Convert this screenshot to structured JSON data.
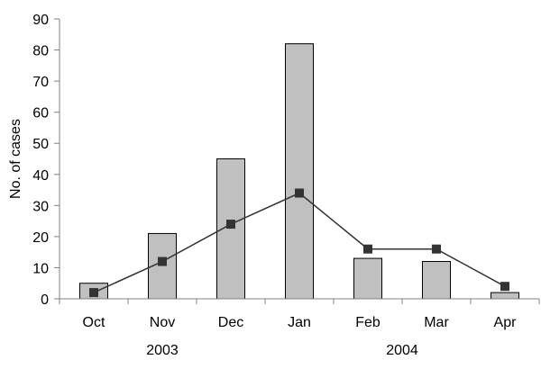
{
  "chart_data": {
    "type": "bar",
    "categories": [
      "Oct",
      "Nov",
      "Dec",
      "Jan",
      "Feb",
      "Mar",
      "Apr"
    ],
    "year_labels": [
      "2003",
      "2004"
    ],
    "ylabel": "No. of cases",
    "ylim": [
      0,
      90
    ],
    "yticks": [
      "0",
      "10",
      "20",
      "30",
      "40",
      "50",
      "60",
      "70",
      "80",
      "90"
    ],
    "grid": false,
    "legend": "none",
    "series": [
      {
        "kind": "bar",
        "values": [
          5,
          21,
          45,
          82,
          13,
          12,
          2
        ],
        "color": "#c0c0c0"
      },
      {
        "kind": "line",
        "values": [
          2,
          12,
          24,
          34,
          16,
          16,
          4
        ],
        "color": "#333333",
        "marker": "square"
      }
    ]
  }
}
